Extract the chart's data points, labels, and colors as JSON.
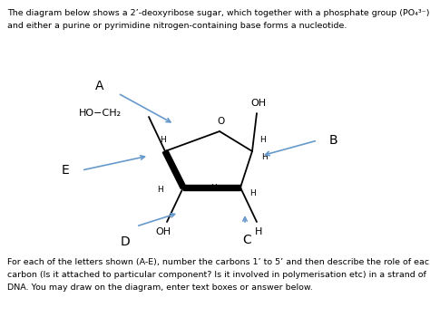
{
  "title_line1": "The diagram below shows a 2’-deoxyribose sugar, which together with a phosphate group (PO₄³⁻)",
  "title_line2": "and either a purine or pyrimidine nitrogen-containing base forms a nucleotide.",
  "bottom_text_line1": "For each of the letters shown (A-E), number the carbons 1’ to 5’ and then describe the role of each",
  "bottom_text_line2": "carbon (Is it attached to particular component? Is it involved in polymerisation etc) in a strand of",
  "bottom_text_line3": "DNA. You may draw on the diagram, enter text boxes or answer below.",
  "bg_color": "#ffffff",
  "text_color": "#000000",
  "arrow_color": "#6699cc",
  "structure_color": "#000000"
}
